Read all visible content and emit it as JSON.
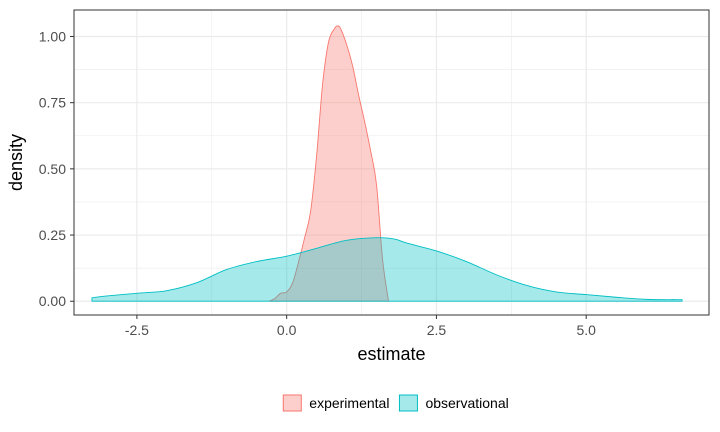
{
  "chart_data": {
    "type": "area",
    "title": "",
    "xlabel": "estimate",
    "ylabel": "density",
    "xlim": [
      -3.55,
      7.05
    ],
    "ylim": [
      -0.052,
      1.1
    ],
    "x_ticks": [
      -2.5,
      0.0,
      2.5,
      5.0
    ],
    "x_tick_labels": [
      "-2.5",
      "0.0",
      "2.5",
      "5.0"
    ],
    "y_ticks": [
      0.0,
      0.25,
      0.5,
      0.75,
      1.0
    ],
    "y_tick_labels": [
      "0.00",
      "0.25",
      "0.50",
      "0.75",
      "1.00"
    ],
    "grid": true,
    "legend_position": "bottom",
    "series": [
      {
        "name": "experimental",
        "fill": "#f8766d",
        "line": "#f8766d",
        "x": [
          -0.3,
          -0.2,
          -0.1,
          0.0,
          0.1,
          0.2,
          0.3,
          0.4,
          0.5,
          0.6,
          0.7,
          0.8,
          0.85,
          0.9,
          1.0,
          1.1,
          1.2,
          1.3,
          1.4,
          1.5,
          1.6,
          1.7
        ],
        "y": [
          0.0,
          0.01,
          0.03,
          0.035,
          0.07,
          0.15,
          0.24,
          0.34,
          0.55,
          0.82,
          0.98,
          1.03,
          1.04,
          1.03,
          0.97,
          0.89,
          0.78,
          0.68,
          0.57,
          0.44,
          0.16,
          0.0
        ]
      },
      {
        "name": "observational",
        "fill": "#00bfc4",
        "line": "#00bfc4",
        "x": [
          -3.25,
          -3.0,
          -2.5,
          -2.0,
          -1.5,
          -1.0,
          -0.5,
          0.0,
          0.5,
          1.0,
          1.5,
          1.8,
          2.0,
          2.5,
          3.0,
          3.5,
          4.0,
          4.5,
          5.0,
          5.5,
          6.0,
          6.5,
          6.6
        ],
        "y": [
          0.013,
          0.02,
          0.03,
          0.04,
          0.07,
          0.12,
          0.15,
          0.17,
          0.2,
          0.23,
          0.24,
          0.235,
          0.22,
          0.19,
          0.15,
          0.1,
          0.06,
          0.035,
          0.025,
          0.015,
          0.007,
          0.006,
          0.006
        ]
      }
    ]
  }
}
